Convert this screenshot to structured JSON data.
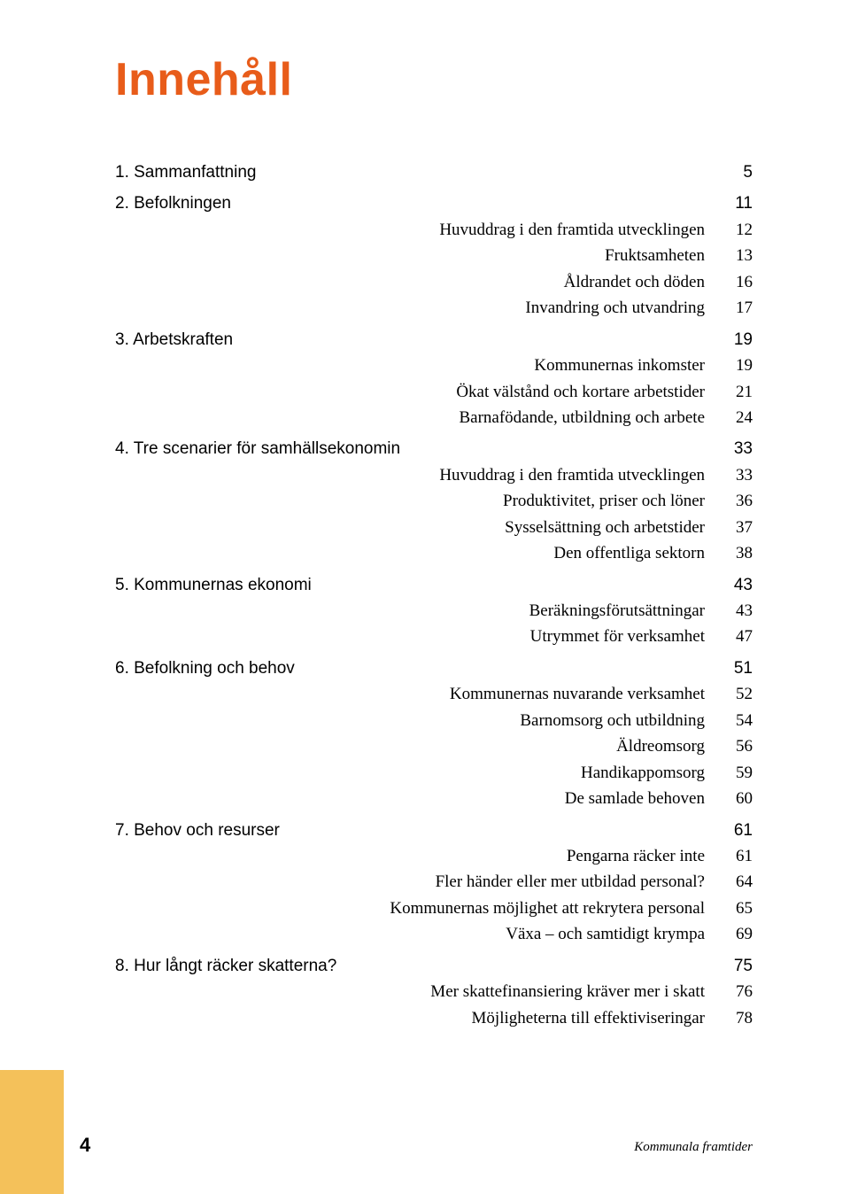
{
  "title": "Innehåll",
  "toc": [
    {
      "type": "chapter",
      "label": "1. Sammanfattning",
      "page": "5"
    },
    {
      "type": "chapter",
      "label": "2. Befolkningen",
      "page": "11"
    },
    {
      "type": "sub",
      "label": "Huvuddrag i den framtida utvecklingen",
      "page": "12"
    },
    {
      "type": "sub",
      "label": "Fruktsamheten",
      "page": "13"
    },
    {
      "type": "sub",
      "label": "Åldrandet och döden",
      "page": "16"
    },
    {
      "type": "sub",
      "label": "Invandring och utvandring",
      "page": "17"
    },
    {
      "type": "chapter",
      "label": "3. Arbetskraften",
      "page": "19"
    },
    {
      "type": "sub",
      "label": "Kommunernas inkomster",
      "page": "19"
    },
    {
      "type": "sub",
      "label": "Ökat välstånd och kortare arbetstider",
      "page": "21"
    },
    {
      "type": "sub",
      "label": "Barnafödande, utbildning och arbete",
      "page": "24"
    },
    {
      "type": "chapter",
      "label": "4. Tre scenarier för samhällsekonomin",
      "page": "33"
    },
    {
      "type": "sub",
      "label": "Huvuddrag i den framtida utvecklingen",
      "page": "33"
    },
    {
      "type": "sub",
      "label": "Produktivitet, priser och löner",
      "page": "36"
    },
    {
      "type": "sub",
      "label": "Sysselsättning och arbetstider",
      "page": "37"
    },
    {
      "type": "sub",
      "label": "Den offentliga sektorn",
      "page": "38"
    },
    {
      "type": "chapter",
      "label": "5. Kommunernas ekonomi",
      "page": "43"
    },
    {
      "type": "sub",
      "label": "Beräkningsförutsättningar",
      "page": "43"
    },
    {
      "type": "sub",
      "label": "Utrymmet för verksamhet",
      "page": "47"
    },
    {
      "type": "chapter",
      "label": "6. Befolkning och behov",
      "page": "51"
    },
    {
      "type": "sub",
      "label": "Kommunernas nuvarande verksamhet",
      "page": "52"
    },
    {
      "type": "sub",
      "label": "Barnomsorg och utbildning",
      "page": "54"
    },
    {
      "type": "sub",
      "label": "Äldreomsorg",
      "page": "56"
    },
    {
      "type": "sub",
      "label": "Handikappomsorg",
      "page": "59"
    },
    {
      "type": "sub",
      "label": "De samlade behoven",
      "page": "60"
    },
    {
      "type": "chapter",
      "label": "7. Behov och resurser",
      "page": "61"
    },
    {
      "type": "sub",
      "label": "Pengarna räcker inte",
      "page": "61"
    },
    {
      "type": "sub",
      "label": "Fler händer eller mer utbildad personal?",
      "page": "64"
    },
    {
      "type": "sub",
      "label": "Kommunernas möjlighet att rekrytera personal",
      "page": "65"
    },
    {
      "type": "sub",
      "label": "Växa – och samtidigt krympa",
      "page": "69"
    },
    {
      "type": "chapter",
      "label": "8. Hur långt räcker skatterna?",
      "page": "75"
    },
    {
      "type": "sub",
      "label": "Mer skattefinansiering kräver mer i skatt",
      "page": "76"
    },
    {
      "type": "sub",
      "label": "Möjligheterna till effektiviseringar",
      "page": "78"
    }
  ],
  "page_number": "4",
  "publication": "Kommunala framtider",
  "colors": {
    "title": "#e85c1a",
    "tab": "#f4c15a",
    "text": "#000000",
    "background": "#ffffff"
  }
}
